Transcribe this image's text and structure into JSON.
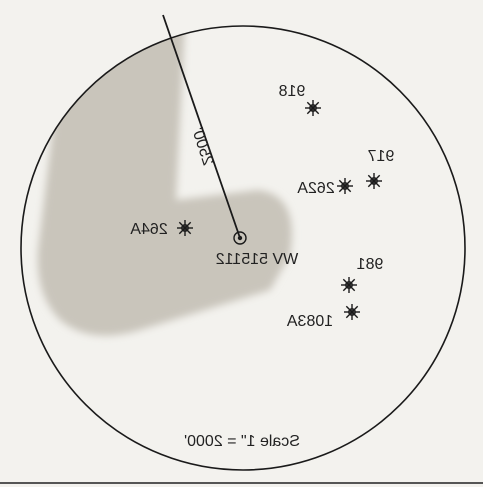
{
  "map": {
    "scale_label": "Scale 1\" = 2000'",
    "radius_label": "2500'",
    "center_well": {
      "label": "WV 515112",
      "icon": "target-well-icon"
    },
    "wells": [
      {
        "id": "well-918",
        "label": "918",
        "icon": "gas-well-icon"
      },
      {
        "id": "well-917",
        "label": "917",
        "icon": "gas-well-icon"
      },
      {
        "id": "well-262a",
        "label": "262A",
        "icon": "gas-well-icon"
      },
      {
        "id": "well-264a",
        "label": "264A",
        "icon": "gas-well-icon"
      },
      {
        "id": "well-981",
        "label": "981",
        "icon": "gas-well-icon"
      },
      {
        "id": "well-1083a",
        "label": "1083A",
        "icon": "gas-well-icon"
      }
    ],
    "colors": {
      "shaded_area": "#c9c5bb",
      "line": "#1a1a1a",
      "background": "#f3f2ee"
    }
  }
}
